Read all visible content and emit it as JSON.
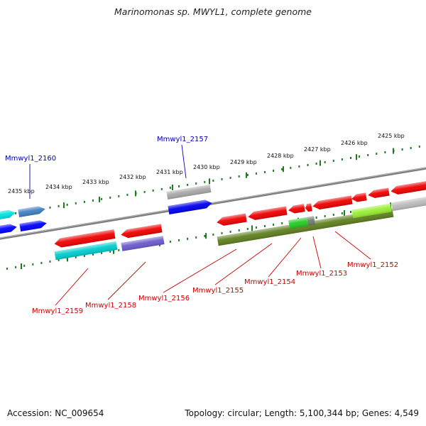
{
  "title": "Marinomonas sp. MWYL1, complete genome",
  "footer": {
    "accession": "Accession: NC_009654",
    "summary": "Topology: circular; Length: 5,100,344 bp; Genes: 4,549"
  },
  "colors": {
    "backbone": "#7f7f7f",
    "tick": "#1f7a1f",
    "label_red": "#cc0000",
    "label_blue": "#0000bb"
  },
  "kbp_labels": [
    "2435 kbp",
    "2434 kbp",
    "2433 kbp",
    "2432 kbp",
    "2431 kbp",
    "2430 kbp",
    "2429 kbp",
    "2428 kbp",
    "2427 kbp",
    "2426 kbp",
    "2425 kbp"
  ],
  "gene_labels": [
    {
      "name": "Mmwyl1_2160",
      "color": "blue"
    },
    {
      "name": "Mmwyl1_2157",
      "color": "blue"
    },
    {
      "name": "Mmwyl1_2159",
      "color": "red"
    },
    {
      "name": "Mmwyl1_2158",
      "color": "red"
    },
    {
      "name": "Mmwyl1_2156",
      "color": "red"
    },
    {
      "name": "Mmwyl1_2155",
      "color": "red"
    },
    {
      "name": "Mmwyl1_2154",
      "color": "red"
    },
    {
      "name": "Mmwyl1_2153",
      "color": "red"
    },
    {
      "name": "Mmwyl1_2152",
      "color": "red"
    }
  ],
  "features": [
    {
      "name": "cyan-outer",
      "color": "#00e0e0",
      "dir": "right"
    },
    {
      "name": "blue-outer",
      "color": "#3f7fbf",
      "dir": "right"
    },
    {
      "name": "blue-inner",
      "color": "#0000ff",
      "dir": "right"
    },
    {
      "name": "blue-inner-2",
      "color": "#0000ff",
      "dir": "right"
    },
    {
      "name": "gray-2157",
      "color": "#a8a8a8",
      "dir": "right"
    },
    {
      "name": "blue-2157",
      "color": "#0000ee",
      "dir": "right"
    },
    {
      "name": "red-2159",
      "color": "#ee0000",
      "dir": "left"
    },
    {
      "name": "red-2158",
      "color": "#ee0000",
      "dir": "left"
    },
    {
      "name": "cyan-2159",
      "color": "#00cccc",
      "dir": "none"
    },
    {
      "name": "purple-2158",
      "color": "#6a5acd",
      "dir": "none"
    },
    {
      "name": "red-2156",
      "color": "#ee0000",
      "dir": "left"
    },
    {
      "name": "red-2155",
      "color": "#ee0000",
      "dir": "left"
    },
    {
      "name": "red-2154",
      "color": "#ee0000",
      "dir": "left"
    },
    {
      "name": "red-2154b",
      "color": "#ee0000",
      "dir": "left"
    },
    {
      "name": "red-2153",
      "color": "#ee0000",
      "dir": "left"
    },
    {
      "name": "red-2152a",
      "color": "#ee0000",
      "dir": "left"
    },
    {
      "name": "red-2152b",
      "color": "#ee0000",
      "dir": "left"
    },
    {
      "name": "red-2152c",
      "color": "#ee0000",
      "dir": "left"
    },
    {
      "name": "olive-band",
      "color": "#5f7f1f",
      "dir": "none"
    },
    {
      "name": "green-seg",
      "color": "#22cc22",
      "dir": "none"
    },
    {
      "name": "gray-seg",
      "color": "#6f7f6f",
      "dir": "none"
    },
    {
      "name": "lime-seg",
      "color": "#99ee33",
      "dir": "none"
    },
    {
      "name": "silver-seg",
      "color": "#bbbbbb",
      "dir": "none"
    }
  ]
}
